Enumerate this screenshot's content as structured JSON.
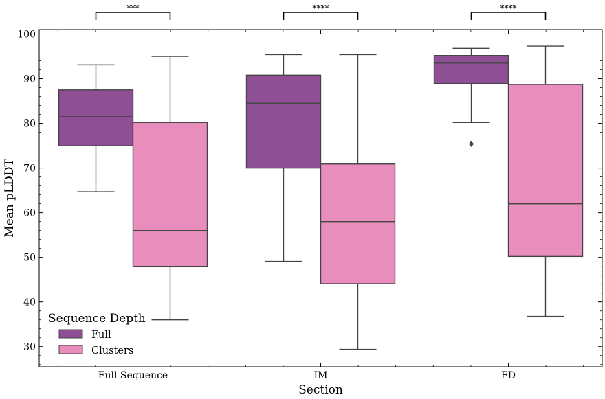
{
  "chart_data": {
    "type": "box",
    "xlabel": "Section",
    "ylabel": "Mean pLDDT",
    "categories": [
      "Full Sequence",
      "IM",
      "FD"
    ],
    "ylim": [
      25.5,
      101
    ],
    "yticks": [
      30,
      40,
      50,
      60,
      70,
      80,
      90,
      100
    ],
    "grid": false,
    "legend": {
      "title": "Sequence Depth",
      "position": "lower-left",
      "entries": [
        {
          "name": "Full",
          "color": "#8e4f95"
        },
        {
          "name": "Clusters",
          "color": "#e88dbc"
        }
      ]
    },
    "series": [
      {
        "name": "Full",
        "color": "#8e4f95",
        "boxes": [
          {
            "whisker_low": 64.7,
            "q1": 75.0,
            "median": 81.5,
            "q3": 87.5,
            "whisker_high": 93.1,
            "outliers": []
          },
          {
            "whisker_low": 49.1,
            "q1": 70.0,
            "median": 84.5,
            "q3": 90.8,
            "whisker_high": 95.4,
            "outliers": []
          },
          {
            "whisker_low": 80.2,
            "q1": 88.9,
            "median": 93.5,
            "q3": 95.2,
            "whisker_high": 96.8,
            "outliers": [
              75.4
            ]
          }
        ]
      },
      {
        "name": "Clusters",
        "color": "#e88dbc",
        "boxes": [
          {
            "whisker_low": 36.0,
            "q1": 47.9,
            "median": 56.0,
            "q3": 80.2,
            "whisker_high": 95.0,
            "outliers": []
          },
          {
            "whisker_low": 29.4,
            "q1": 44.1,
            "median": 58.0,
            "q3": 70.9,
            "whisker_high": 95.4,
            "outliers": []
          },
          {
            "whisker_low": 36.8,
            "q1": 50.2,
            "median": 62.0,
            "q3": 88.7,
            "whisker_high": 97.3,
            "outliers": []
          }
        ]
      }
    ],
    "significance": [
      {
        "category": "Full Sequence",
        "label": "***"
      },
      {
        "category": "IM",
        "label": "****"
      },
      {
        "category": "FD",
        "label": "****"
      }
    ]
  }
}
